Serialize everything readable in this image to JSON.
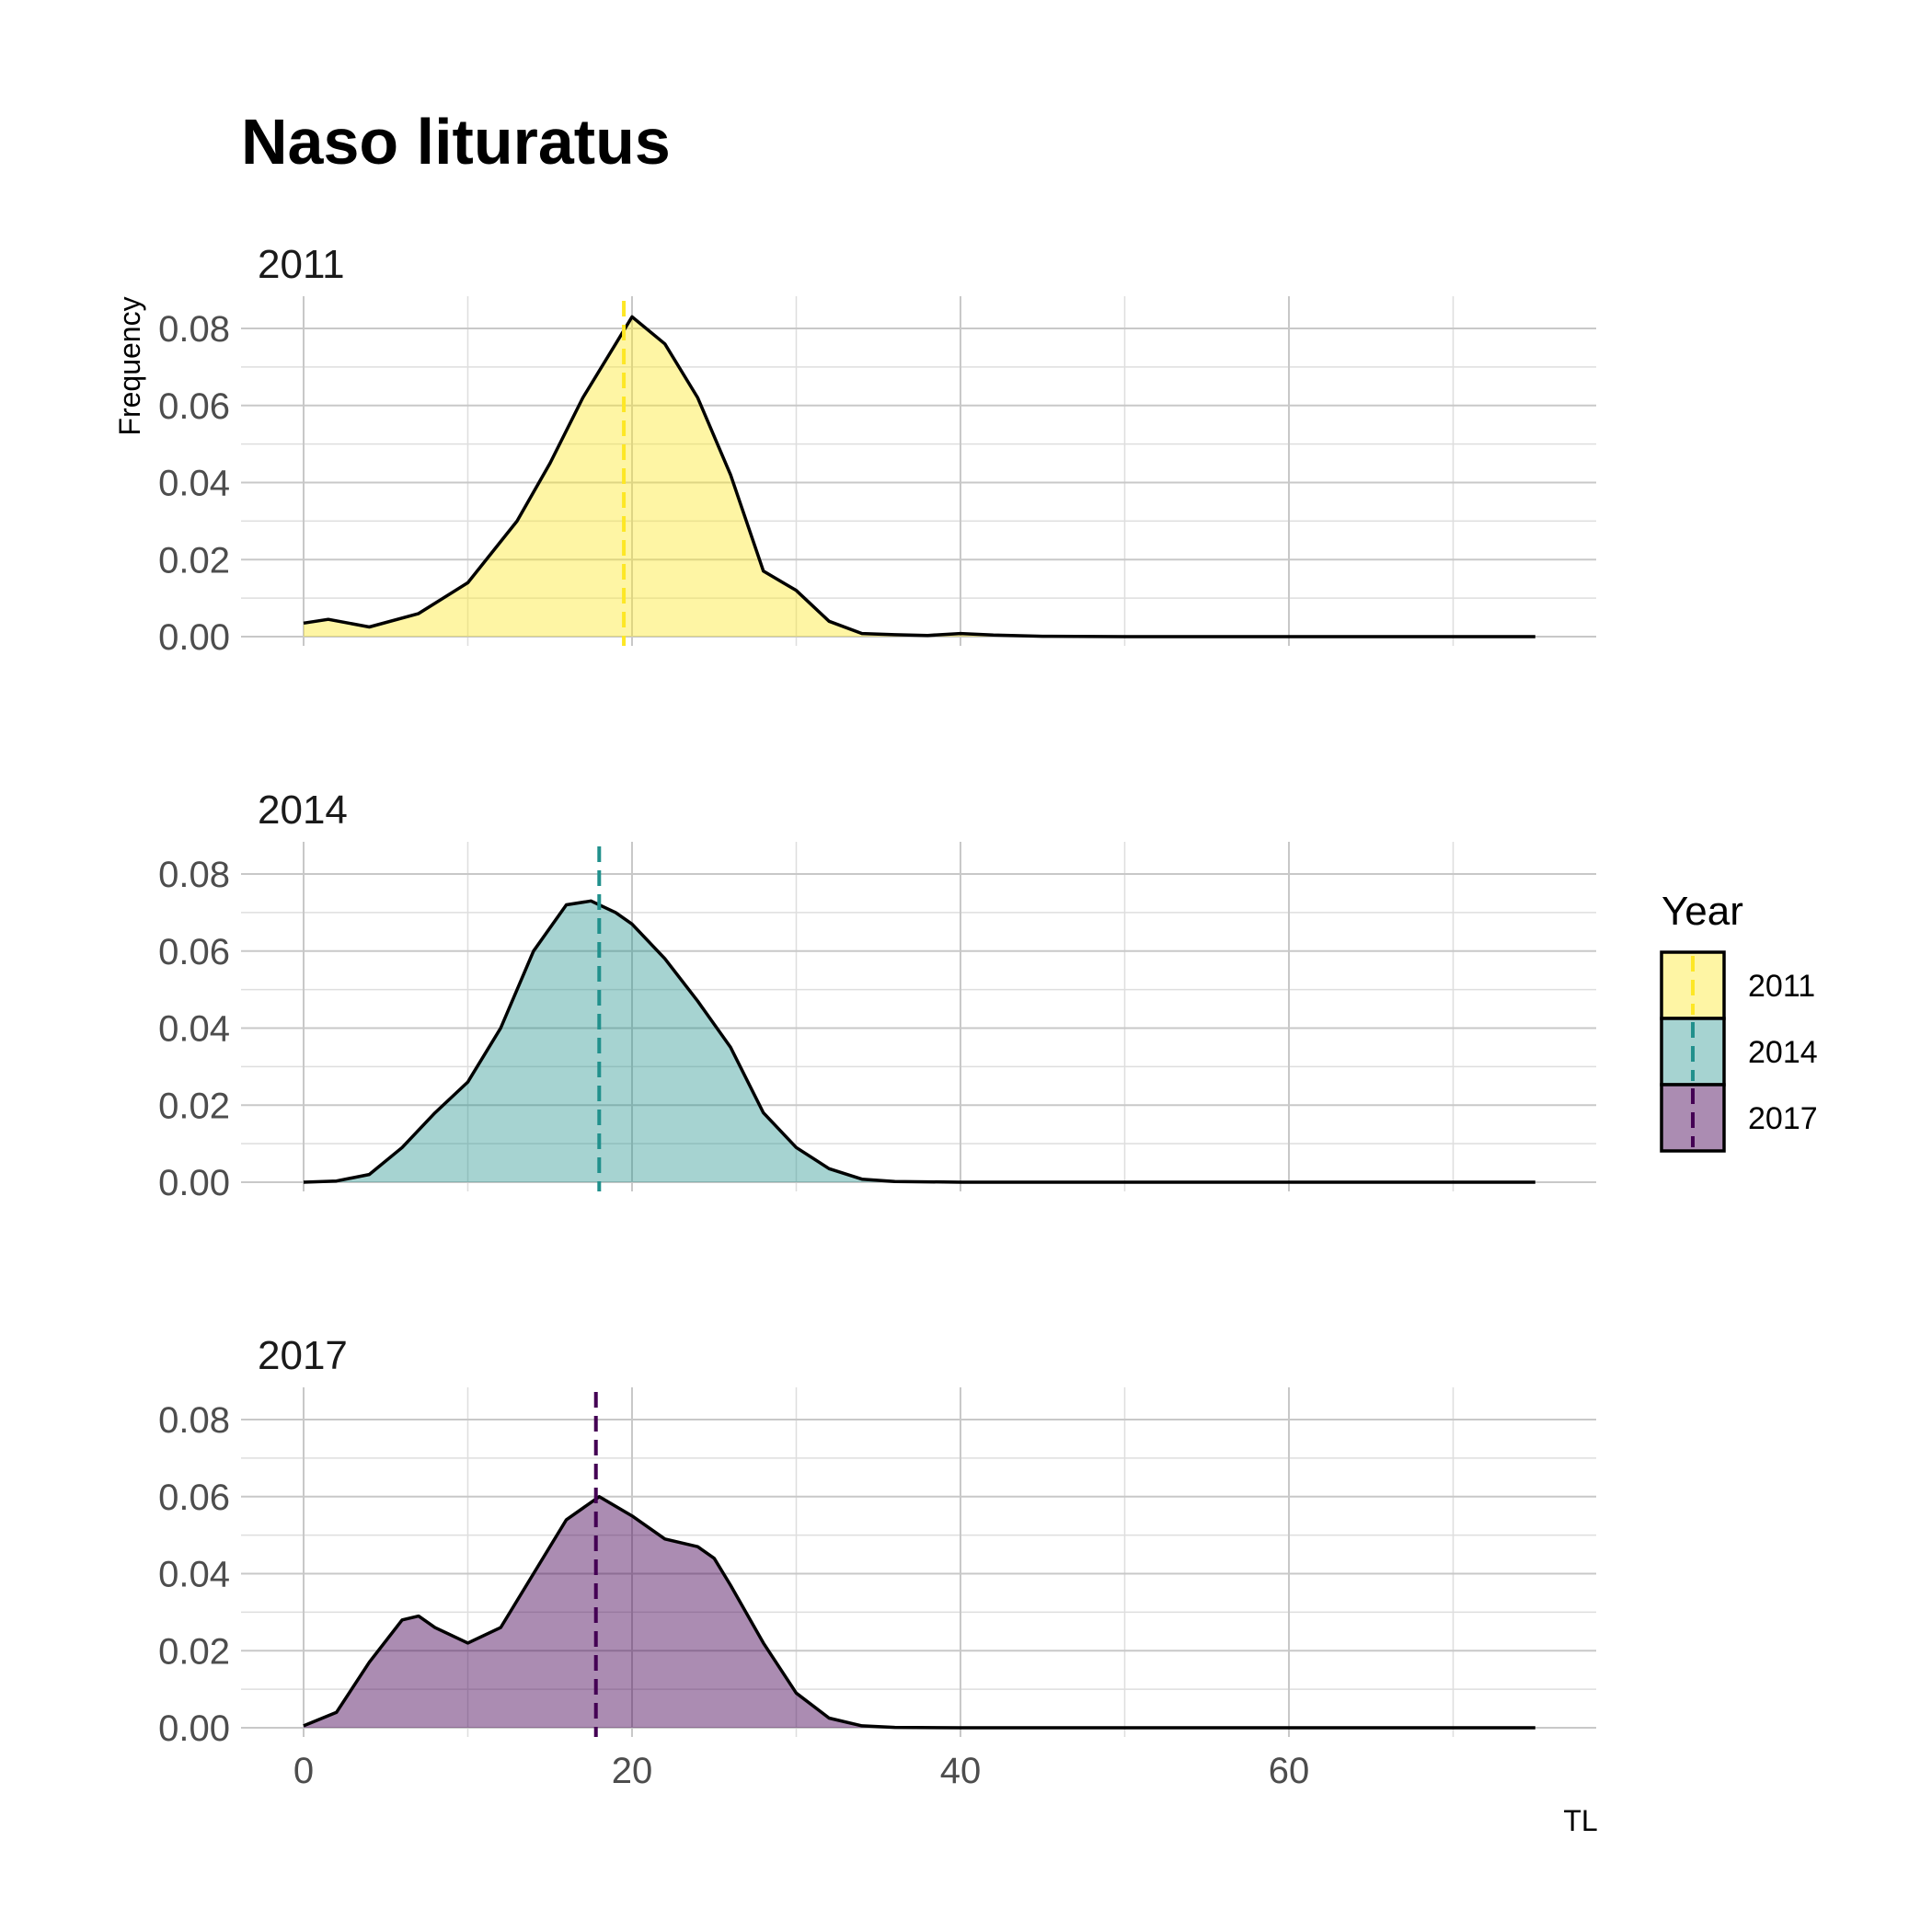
{
  "chart_data": {
    "type": "area",
    "title": "Naso lituratus",
    "xlabel": "TL",
    "ylabel": "Frequency",
    "xlim": [
      -3,
      79
    ],
    "ylim": [
      0,
      0.088
    ],
    "x_ticks": [
      0,
      20,
      40,
      60
    ],
    "x_tick_labels": [
      "0",
      "20",
      "40",
      "60"
    ],
    "y_ticks": [
      0,
      0.02,
      0.04,
      0.06,
      0.08
    ],
    "y_tick_labels": [
      "0.00",
      "0.02",
      "0.04",
      "0.06",
      "0.08"
    ],
    "grid": true,
    "legend": {
      "title": "Year",
      "placement": "right",
      "entries": [
        "2011",
        "2014",
        "2017"
      ]
    },
    "panels": [
      {
        "label": "2011",
        "fill": "#fde725",
        "fill_opacity": 0.42,
        "line_color": "#fde725",
        "mean_line_x": 19.5,
        "x": [
          0,
          1.5,
          4,
          7,
          10,
          13,
          15,
          17,
          19,
          20,
          22,
          24,
          26,
          28,
          30,
          32,
          34,
          36,
          38,
          40,
          42,
          45,
          50,
          55,
          60,
          65,
          70,
          75
        ],
        "y": [
          0.0035,
          0.0045,
          0.0025,
          0.006,
          0.014,
          0.03,
          0.045,
          0.062,
          0.076,
          0.083,
          0.076,
          0.062,
          0.042,
          0.017,
          0.012,
          0.004,
          0.0008,
          0.0005,
          0.0003,
          0.0008,
          0.0004,
          0.0001,
          0,
          0,
          0,
          0,
          0,
          0
        ]
      },
      {
        "label": "2014",
        "fill": "#21908c",
        "fill_opacity": 0.4,
        "line_color": "#21908c",
        "mean_line_x": 18,
        "x": [
          0,
          2,
          4,
          6,
          8,
          10,
          12,
          14,
          16,
          17.5,
          19,
          20,
          22,
          24,
          26,
          28,
          30,
          32,
          34,
          36,
          40,
          45,
          50,
          60,
          70,
          75
        ],
        "y": [
          0,
          0.0003,
          0.002,
          0.009,
          0.018,
          0.026,
          0.04,
          0.06,
          0.072,
          0.073,
          0.07,
          0.067,
          0.058,
          0.047,
          0.035,
          0.018,
          0.009,
          0.0035,
          0.0008,
          0.0002,
          0,
          0,
          0,
          0,
          0,
          0
        ]
      },
      {
        "label": "2017",
        "fill": "#440154",
        "fill_opacity": 0.45,
        "line_color": "#440154",
        "mean_line_x": 17.8,
        "x": [
          0,
          2,
          4,
          6,
          7,
          8,
          10,
          12,
          14,
          16,
          18,
          20,
          22,
          24,
          25,
          26,
          28,
          30,
          32,
          34,
          36,
          40,
          50,
          60,
          70,
          75
        ],
        "y": [
          0.0005,
          0.004,
          0.017,
          0.028,
          0.029,
          0.026,
          0.022,
          0.026,
          0.04,
          0.054,
          0.06,
          0.055,
          0.049,
          0.047,
          0.044,
          0.037,
          0.022,
          0.009,
          0.0025,
          0.0005,
          0.0001,
          0,
          0,
          0,
          0,
          0
        ]
      }
    ]
  }
}
